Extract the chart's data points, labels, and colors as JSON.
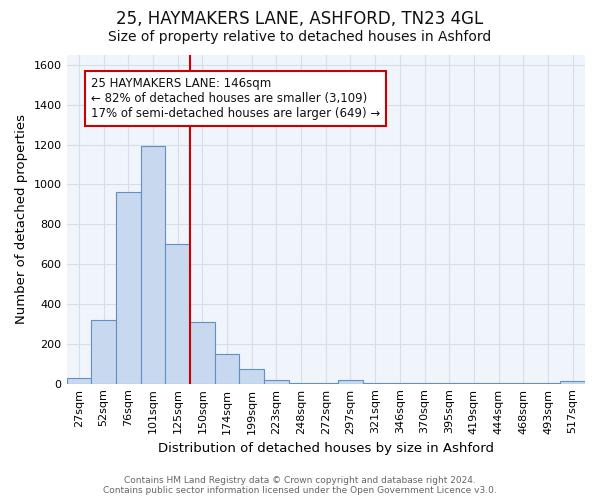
{
  "title_line1": "25, HAYMAKERS LANE, ASHFORD, TN23 4GL",
  "title_line2": "Size of property relative to detached houses in Ashford",
  "xlabel": "Distribution of detached houses by size in Ashford",
  "ylabel": "Number of detached properties",
  "categories": [
    "27sqm",
    "52sqm",
    "76sqm",
    "101sqm",
    "125sqm",
    "150sqm",
    "174sqm",
    "199sqm",
    "223sqm",
    "248sqm",
    "272sqm",
    "297sqm",
    "321sqm",
    "346sqm",
    "370sqm",
    "395sqm",
    "419sqm",
    "444sqm",
    "468sqm",
    "493sqm",
    "517sqm"
  ],
  "values": [
    28,
    320,
    960,
    1195,
    700,
    310,
    150,
    75,
    18,
    5,
    5,
    20,
    5,
    2,
    5,
    3,
    2,
    2,
    2,
    3,
    15
  ],
  "bar_color": "#c8d8ee",
  "bar_edge_color": "#6090c8",
  "vline_color": "#cc0000",
  "annotation_text": "25 HAYMAKERS LANE: 146sqm\n← 82% of detached houses are smaller (3,109)\n17% of semi-detached houses are larger (649) →",
  "annotation_box_color": "#ffffff",
  "annotation_box_edge_color": "#cc0000",
  "ylim": [
    0,
    1650
  ],
  "yticks": [
    0,
    200,
    400,
    600,
    800,
    1000,
    1200,
    1400,
    1600
  ],
  "footnote": "Contains HM Land Registry data © Crown copyright and database right 2024.\nContains public sector information licensed under the Open Government Licence v3.0.",
  "bg_color": "#ffffff",
  "plot_bg_color": "#f0f4fb",
  "grid_color": "#d8dde8",
  "title_fontsize": 12,
  "subtitle_fontsize": 10,
  "axis_label_fontsize": 9.5,
  "tick_fontsize": 8,
  "annotation_fontsize": 8.5,
  "footnote_fontsize": 6.5
}
